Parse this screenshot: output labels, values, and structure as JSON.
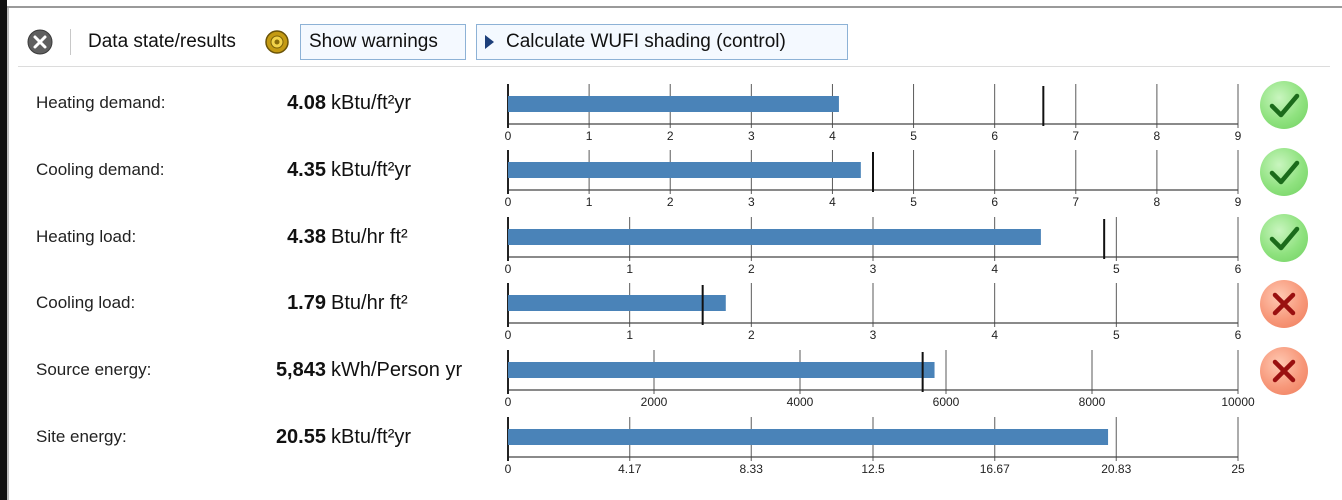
{
  "toolbar": {
    "data_state_label": "Data state/results",
    "show_warnings_label": "Show warnings",
    "calculate_label": "Calculate WUFI shading (control)"
  },
  "colors": {
    "bar": "#4a83b8",
    "ok": "#7ed66d",
    "fail": "#f08a6b",
    "check": "#1b6b1b",
    "cross": "#9a1010"
  },
  "metrics": [
    {
      "label": "Heating demand:",
      "value": "4.08",
      "unit": "kBtu/ft²yr",
      "bar_value": 4.08,
      "marker": 6.6,
      "max": 9,
      "ticks": [
        0,
        1,
        2,
        3,
        4,
        5,
        6,
        7,
        8,
        9
      ],
      "tick_labels": [
        "0",
        "1",
        "2",
        "3",
        "4",
        "5",
        "6",
        "7",
        "8",
        "9"
      ],
      "status": "ok"
    },
    {
      "label": "Cooling demand:",
      "value": "4.35",
      "unit": "kBtu/ft²yr",
      "bar_value": 4.35,
      "marker": 4.5,
      "max": 9,
      "ticks": [
        0,
        1,
        2,
        3,
        4,
        5,
        6,
        7,
        8,
        9
      ],
      "tick_labels": [
        "0",
        "1",
        "2",
        "3",
        "4",
        "5",
        "6",
        "7",
        "8",
        "9"
      ],
      "status": "ok"
    },
    {
      "label": "Heating load:",
      "value": "4.38",
      "unit": "Btu/hr ft²",
      "bar_value": 4.38,
      "marker": 4.9,
      "max": 6,
      "ticks": [
        0,
        1,
        2,
        3,
        4,
        5,
        6
      ],
      "tick_labels": [
        "0",
        "1",
        "2",
        "3",
        "4",
        "5",
        "6"
      ],
      "status": "ok"
    },
    {
      "label": "Cooling load:",
      "value": "1.79",
      "unit": "Btu/hr ft²",
      "bar_value": 1.79,
      "marker": 1.6,
      "max": 6,
      "ticks": [
        0,
        1,
        2,
        3,
        4,
        5,
        6
      ],
      "tick_labels": [
        "0",
        "1",
        "2",
        "3",
        "4",
        "5",
        "6"
      ],
      "status": "fail"
    },
    {
      "label": "Source energy:",
      "value": "5,843",
      "unit": "kWh/Person yr",
      "bar_value": 5843,
      "marker": 5680,
      "max": 10000,
      "ticks": [
        0,
        2000,
        4000,
        6000,
        8000,
        10000
      ],
      "tick_labels": [
        "0",
        "2000",
        "4000",
        "6000",
        "8000",
        "10000"
      ],
      "status": "fail"
    },
    {
      "label": "Site energy:",
      "value": "20.55",
      "unit": "kBtu/ft²yr",
      "bar_value": 20.55,
      "marker": null,
      "max": 25,
      "ticks": [
        0,
        4.17,
        8.33,
        12.5,
        16.67,
        20.83,
        25
      ],
      "tick_labels": [
        "0",
        "4.17",
        "8.33",
        "12.5",
        "16.67",
        "20.83",
        "25"
      ],
      "status": null
    }
  ]
}
